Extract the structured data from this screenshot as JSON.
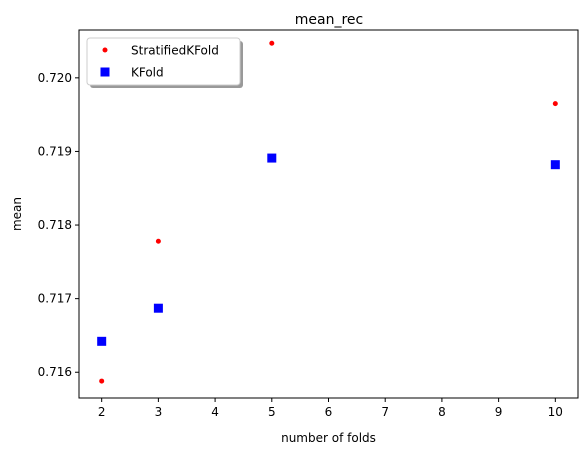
{
  "chart_data": {
    "type": "scatter",
    "title": "mean_rec",
    "xlabel": "number of folds",
    "ylabel": "mean",
    "xlim": [
      1.6,
      10.4
    ],
    "ylim": [
      0.71565,
      0.72065
    ],
    "xticks": [
      2,
      3,
      4,
      5,
      6,
      7,
      8,
      9,
      10
    ],
    "yticks": [
      0.716,
      0.717,
      0.718,
      0.719,
      0.72
    ],
    "ytick_labels": [
      "0.716",
      "0.717",
      "0.718",
      "0.719",
      "0.720"
    ],
    "grid": false,
    "legend_position": "top-left",
    "series": [
      {
        "name": "StratifiedKFold",
        "marker": "circle",
        "color": "#ff0000",
        "points": [
          {
            "x": 2,
            "y": 0.71588
          },
          {
            "x": 3,
            "y": 0.71778
          },
          {
            "x": 5,
            "y": 0.72047
          },
          {
            "x": 10,
            "y": 0.71965
          }
        ]
      },
      {
        "name": "KFold",
        "marker": "square",
        "color": "#0000ff",
        "points": [
          {
            "x": 2,
            "y": 0.71642
          },
          {
            "x": 3,
            "y": 0.71687
          },
          {
            "x": 5,
            "y": 0.71891
          },
          {
            "x": 10,
            "y": 0.71882
          }
        ]
      }
    ]
  }
}
